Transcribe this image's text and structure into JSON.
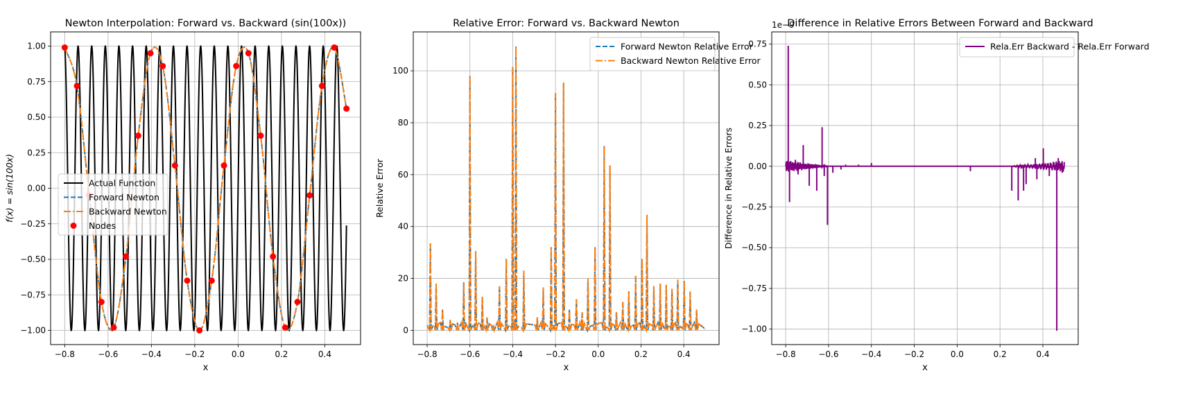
{
  "chart_data": [
    {
      "type": "line",
      "title": "Newton Interpolation: Forward vs. Backward (sin(100x))",
      "xlabel": "x",
      "ylabel": "f(x) = sin(100x)",
      "xlim": [
        -0.865,
        0.565
      ],
      "ylim": [
        -1.1,
        1.1
      ],
      "xticks": [
        -0.8,
        -0.6,
        -0.4,
        -0.2,
        0.0,
        0.2,
        0.4
      ],
      "xtick_labels": [
        "−0.8",
        "−0.6",
        "−0.4",
        "−0.2",
        "0.0",
        "0.2",
        "0.4"
      ],
      "yticks": [
        -1.0,
        -0.75,
        -0.5,
        -0.25,
        0.0,
        0.25,
        0.5,
        0.75,
        1.0
      ],
      "ytick_labels": [
        "−1.00",
        "−0.75",
        "−0.50",
        "−0.25",
        "0.00",
        "0.25",
        "0.50",
        "0.75",
        "1.00"
      ],
      "grid": true,
      "legend_position": "center-left",
      "series": [
        {
          "name": "Actual Function",
          "color": "#000000",
          "style": "solid",
          "function": "sin(100x)",
          "x_range": [
            -0.8,
            0.5
          ]
        },
        {
          "name": "Forward Newton",
          "color": "#1f77b4",
          "style": "dashed",
          "function": "interpolant through nodes",
          "x_range": [
            -0.8,
            0.5
          ]
        },
        {
          "name": "Backward Newton",
          "color": "#ff7f0e",
          "style": "dashdot",
          "function": "interpolant through nodes",
          "x_range": [
            -0.8,
            0.5
          ]
        },
        {
          "name": "Nodes",
          "color": "#ff0000",
          "style": "markers",
          "x": [
            -0.8,
            -0.7435,
            -0.687,
            -0.6304,
            -0.5739,
            -0.5174,
            -0.4609,
            -0.4043,
            -0.3478,
            -0.2913,
            -0.2348,
            -0.1783,
            -0.1217,
            -0.0652,
            -0.0087,
            0.0478,
            0.1043,
            0.1609,
            0.2174,
            0.2739,
            0.3304,
            0.387,
            0.4435,
            0.5
          ],
          "y": [
            0.99,
            0.72,
            -0.05,
            -0.8,
            -0.98,
            -0.48,
            0.37,
            0.95,
            0.86,
            0.16,
            -0.65,
            -1.0,
            -0.65,
            0.16,
            0.86,
            0.95,
            0.37,
            -0.48,
            -0.98,
            -0.8,
            -0.05,
            0.72,
            0.99,
            0.56
          ]
        }
      ]
    },
    {
      "type": "line",
      "title": "Relative Error: Forward vs. Backward Newton",
      "xlabel": "x",
      "ylabel": "Relative Error",
      "xlim": [
        -0.865,
        0.565
      ],
      "ylim": [
        -5.5,
        115
      ],
      "xticks": [
        -0.8,
        -0.6,
        -0.4,
        -0.2,
        0.0,
        0.2,
        0.4
      ],
      "xtick_labels": [
        "−0.8",
        "−0.6",
        "−0.4",
        "−0.2",
        "0.0",
        "0.2",
        "0.4"
      ],
      "yticks": [
        0,
        20,
        40,
        60,
        80,
        100
      ],
      "ytick_labels": [
        "0",
        "20",
        "40",
        "60",
        "80",
        "100"
      ],
      "grid": true,
      "legend_position": "top-right",
      "series": [
        {
          "name": "Forward Newton Relative Error",
          "color": "#1f77b4",
          "style": "dashed"
        },
        {
          "name": "Backward Newton Relative Error",
          "color": "#ff7f0e",
          "style": "dashdot"
        }
      ],
      "spikes": {
        "x": [
          -0.785,
          -0.758,
          -0.728,
          -0.692,
          -0.658,
          -0.629,
          -0.6,
          -0.573,
          -0.542,
          -0.52,
          -0.49,
          -0.462,
          -0.43,
          -0.4,
          -0.385,
          -0.348,
          -0.285,
          -0.257,
          -0.22,
          -0.2,
          -0.162,
          -0.135,
          -0.102,
          -0.075,
          -0.048,
          -0.015,
          0.028,
          0.055,
          0.085,
          0.115,
          0.143,
          0.175,
          0.205,
          0.228,
          0.26,
          0.29,
          0.318,
          0.345,
          0.372,
          0.402,
          0.43,
          0.46
        ],
        "y": [
          33.5,
          18,
          8,
          4,
          3,
          18.5,
          98,
          30.5,
          13,
          5,
          2,
          17,
          27.5,
          101.5,
          109.5,
          23,
          5,
          16.5,
          32,
          91.5,
          95.5,
          8,
          12,
          7,
          20,
          32,
          71,
          63.5,
          7,
          11,
          15,
          21,
          27.5,
          44.5,
          17,
          18,
          17.5,
          16,
          19.5,
          19,
          15,
          8
        ]
      }
    },
    {
      "type": "line",
      "title": "Difference in Relative Errors Between Forward and Backward",
      "xlabel": "x",
      "ylabel": "Difference in Relative Errors",
      "scale_note": "1e−9",
      "xlim": [
        -0.865,
        0.565
      ],
      "ylim": [
        -1.095,
        0.825
      ],
      "xticks": [
        -0.8,
        -0.6,
        -0.4,
        -0.2,
        0.0,
        0.2,
        0.4
      ],
      "xtick_labels": [
        "−0.8",
        "−0.6",
        "−0.4",
        "−0.2",
        "0.0",
        "0.2",
        "0.4"
      ],
      "yticks": [
        -1.0,
        -0.75,
        -0.5,
        -0.25,
        0.0,
        0.25,
        0.5,
        0.75
      ],
      "ytick_labels": [
        "−1.00",
        "−0.75",
        "−0.50",
        "−0.25",
        "0.00",
        "0.25",
        "0.50",
        "0.75"
      ],
      "grid": true,
      "legend_position": "top-right",
      "series": [
        {
          "name": "Rela.Err Backward - Rela.Err Forward",
          "color": "#800080",
          "style": "solid"
        }
      ],
      "spikes": {
        "x": [
          -0.795,
          -0.788,
          -0.782,
          -0.755,
          -0.742,
          -0.718,
          -0.69,
          -0.655,
          -0.63,
          -0.62,
          -0.605,
          -0.58,
          -0.542,
          -0.52,
          -0.46,
          -0.4,
          0.062,
          0.255,
          0.285,
          0.31,
          0.322,
          0.365,
          0.372,
          0.402,
          0.43,
          0.465,
          0.472,
          0.49
        ],
        "y": [
          -0.02,
          0.74,
          -0.22,
          0.04,
          -0.05,
          0.13,
          -0.12,
          -0.15,
          0.24,
          -0.06,
          -0.36,
          -0.04,
          -0.02,
          0.01,
          0.01,
          0.02,
          -0.03,
          -0.15,
          -0.21,
          -0.15,
          -0.11,
          0.05,
          -0.08,
          0.11,
          -0.06,
          -1.01,
          0.05,
          -0.04
        ]
      }
    }
  ]
}
